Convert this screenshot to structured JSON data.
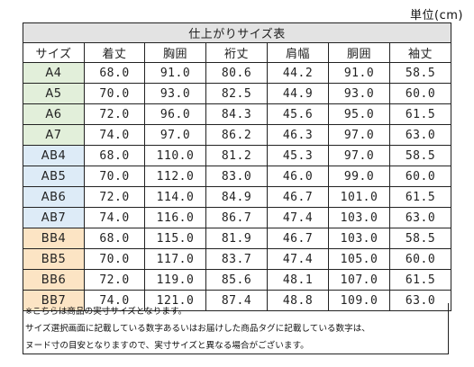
{
  "unit_label": "単位(cm)",
  "table": {
    "title": "仕上がりサイズ表",
    "headers": [
      "サイズ",
      "着丈",
      "胸囲",
      "裄丈",
      "肩幅",
      "胴囲",
      "袖丈"
    ],
    "rows": [
      {
        "group": "A",
        "cells": [
          "A4",
          "68.0",
          "91.0",
          "80.6",
          "44.2",
          "91.0",
          "58.5"
        ]
      },
      {
        "group": "A",
        "cells": [
          "A5",
          "70.0",
          "93.0",
          "82.5",
          "44.9",
          "93.0",
          "60.0"
        ]
      },
      {
        "group": "A",
        "cells": [
          "A6",
          "72.0",
          "96.0",
          "84.3",
          "45.6",
          "95.0",
          "61.5"
        ]
      },
      {
        "group": "A",
        "cells": [
          "A7",
          "74.0",
          "97.0",
          "86.2",
          "46.3",
          "97.0",
          "63.0"
        ]
      },
      {
        "group": "AB",
        "cells": [
          "AB4",
          "68.0",
          "110.0",
          "81.2",
          "45.3",
          "97.0",
          "58.5"
        ]
      },
      {
        "group": "AB",
        "cells": [
          "AB5",
          "70.0",
          "112.0",
          "83.0",
          "46.0",
          "99.0",
          "60.0"
        ]
      },
      {
        "group": "AB",
        "cells": [
          "AB6",
          "72.0",
          "114.0",
          "84.9",
          "46.7",
          "101.0",
          "61.5"
        ]
      },
      {
        "group": "AB",
        "cells": [
          "AB7",
          "74.0",
          "116.0",
          "86.7",
          "47.4",
          "103.0",
          "63.0"
        ]
      },
      {
        "group": "BB",
        "cells": [
          "BB4",
          "68.0",
          "115.0",
          "81.9",
          "46.7",
          "103.0",
          "58.5"
        ]
      },
      {
        "group": "BB",
        "cells": [
          "BB5",
          "70.0",
          "117.0",
          "83.7",
          "47.4",
          "105.0",
          "60.0"
        ]
      },
      {
        "group": "BB",
        "cells": [
          "BB6",
          "72.0",
          "119.0",
          "85.6",
          "48.1",
          "107.0",
          "61.5"
        ]
      },
      {
        "group": "BB",
        "cells": [
          "BB7",
          "74.0",
          "121.0",
          "87.4",
          "48.8",
          "109.0",
          "63.0"
        ]
      }
    ]
  },
  "notes": [
    "※こちらは商品の実寸サイズとなります。",
    "サイズ選択画面に記載している数字あるいはお届けした商品タグに記載している数字は、",
    "ヌード寸の目安となりますので、実寸サイズと異なる場合がございます。"
  ],
  "colors": {
    "title_bg": "#e3e3e3",
    "group_a_bg": "#e2efda",
    "group_ab_bg": "#ddebf7",
    "group_bb_bg": "#fce4c4",
    "border": "#222222"
  }
}
